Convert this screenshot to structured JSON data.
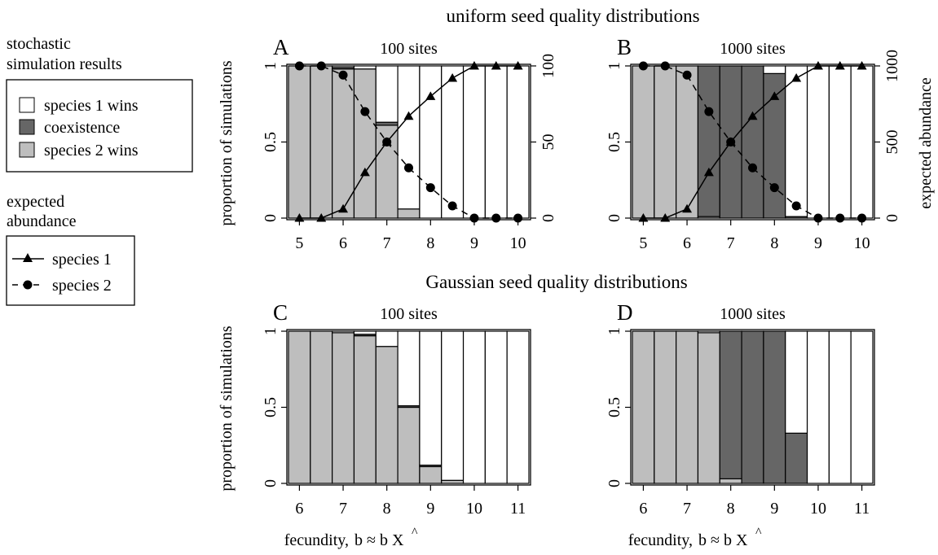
{
  "row_titles": {
    "top": "uniform seed quality distributions",
    "bottom": "Gaussian seed quality distributions"
  },
  "legend_outcomes": {
    "heading": [
      "stochastic",
      "simulation results"
    ],
    "items": [
      {
        "label": "species 1 wins",
        "color": "#ffffff"
      },
      {
        "label": "coexistence",
        "color": "#666666"
      },
      {
        "label": "species 2 wins",
        "color": "#bebebe"
      }
    ]
  },
  "legend_abundance": {
    "heading": [
      "expected",
      "abundance"
    ],
    "items": [
      {
        "label": "species 1",
        "marker": "triangle",
        "line": "solid"
      },
      {
        "label": "species 2",
        "marker": "circle",
        "line": "dashed"
      }
    ]
  },
  "axis_labels": {
    "y_left": "proportion of simulations",
    "y_right": "expected abundance",
    "x_prefix": "fecundity,",
    "x_formula": "b ≈ b X",
    "hat": "^"
  },
  "colors": {
    "species1_wins": "#ffffff",
    "coexistence": "#666666",
    "species2_wins": "#bebebe"
  },
  "chart_data": [
    {
      "type": "bar",
      "panel": "A",
      "title": "100 sites",
      "x": [
        5,
        5.5,
        6,
        6.5,
        7,
        7.5,
        8,
        8.5,
        9,
        9.5,
        10
      ],
      "xticks": [
        5,
        6,
        7,
        8,
        9,
        10
      ],
      "xlim": [
        4.75,
        10.25
      ],
      "ylim": [
        0,
        1
      ],
      "yticks": [
        "0",
        "0.5",
        "1"
      ],
      "stack_order": [
        "species 2 wins",
        "coexistence",
        "species 1 wins"
      ],
      "series": [
        {
          "name": "species 2 wins",
          "values": [
            1,
            1,
            0.98,
            0.98,
            0.61,
            0.06,
            0,
            0,
            0,
            0,
            0
          ]
        },
        {
          "name": "coexistence",
          "values": [
            0,
            0,
            0.01,
            0,
            0.02,
            0,
            0,
            0,
            0,
            0,
            0
          ]
        },
        {
          "name": "species 1 wins",
          "values": [
            0,
            0,
            0.01,
            0.02,
            0.37,
            0.94,
            1,
            1,
            1,
            1,
            1
          ]
        }
      ],
      "right_axis": {
        "ylim": [
          0,
          100
        ],
        "yticks": [
          "0",
          "50",
          "100"
        ],
        "series": [
          {
            "name": "species 1",
            "values": [
              0,
              0,
              6,
              30,
              50,
              67,
              80,
              92,
              100,
              100,
              100
            ]
          },
          {
            "name": "species 2",
            "values": [
              100,
              100,
              94,
              70,
              50,
              33,
              20,
              8,
              0,
              0,
              0
            ]
          }
        ]
      }
    },
    {
      "type": "bar",
      "panel": "B",
      "title": "1000 sites",
      "x": [
        5,
        5.5,
        6,
        6.5,
        7,
        7.5,
        8,
        8.5,
        9,
        9.5,
        10
      ],
      "xticks": [
        5,
        6,
        7,
        8,
        9,
        10
      ],
      "xlim": [
        4.75,
        10.25
      ],
      "ylim": [
        0,
        1
      ],
      "yticks": [
        "0",
        "0.5",
        "1"
      ],
      "stack_order": [
        "species 2 wins",
        "coexistence",
        "species 1 wins"
      ],
      "series": [
        {
          "name": "species 2 wins",
          "values": [
            1,
            1,
            1,
            0.01,
            0,
            0,
            0,
            0,
            0,
            0,
            0
          ]
        },
        {
          "name": "coexistence",
          "values": [
            0,
            0,
            0,
            0.99,
            1,
            1,
            0.95,
            0.01,
            0,
            0,
            0
          ]
        },
        {
          "name": "species 1 wins",
          "values": [
            0,
            0,
            0,
            0,
            0,
            0,
            0.05,
            0.99,
            1,
            1,
            1
          ]
        }
      ],
      "right_axis": {
        "ylim": [
          0,
          1000
        ],
        "yticks": [
          "0",
          "500",
          "1000"
        ],
        "series": [
          {
            "name": "species 1",
            "values": [
              0,
              0,
              60,
              300,
              500,
              670,
              800,
              920,
              1000,
              1000,
              1000
            ]
          },
          {
            "name": "species 2",
            "values": [
              1000,
              1000,
              940,
              700,
              500,
              330,
              200,
              80,
              0,
              0,
              0
            ]
          }
        ]
      }
    },
    {
      "type": "bar",
      "panel": "C",
      "title": "100 sites",
      "x": [
        6,
        6.5,
        7,
        7.5,
        8,
        8.5,
        9,
        9.5,
        10,
        10.5,
        11
      ],
      "xticks": [
        6,
        7,
        8,
        9,
        10,
        11
      ],
      "xlim": [
        5.75,
        11.25
      ],
      "ylim": [
        0,
        1
      ],
      "yticks": [
        "0",
        "0.5",
        "1"
      ],
      "stack_order": [
        "species 2 wins",
        "coexistence",
        "species 1 wins"
      ],
      "series": [
        {
          "name": "species 2 wins",
          "values": [
            1,
            1,
            0.99,
            0.97,
            0.9,
            0.5,
            0.11,
            0.02,
            0,
            0,
            0
          ]
        },
        {
          "name": "coexistence",
          "values": [
            0,
            0,
            0,
            0.01,
            0,
            0.01,
            0.01,
            0,
            0,
            0,
            0
          ]
        },
        {
          "name": "species 1 wins",
          "values": [
            0,
            0,
            0.01,
            0.02,
            0.1,
            0.49,
            0.88,
            0.98,
            1,
            1,
            1
          ]
        }
      ]
    },
    {
      "type": "bar",
      "panel": "D",
      "title": "1000 sites",
      "x": [
        6,
        6.5,
        7,
        7.5,
        8,
        8.5,
        9,
        9.5,
        10,
        10.5,
        11
      ],
      "xticks": [
        6,
        7,
        8,
        9,
        10,
        11
      ],
      "xlim": [
        5.75,
        11.25
      ],
      "ylim": [
        0,
        1
      ],
      "yticks": [
        "0",
        "0.5",
        "1"
      ],
      "stack_order": [
        "species 2 wins",
        "coexistence",
        "species 1 wins"
      ],
      "series": [
        {
          "name": "species 2 wins",
          "values": [
            1,
            1,
            1,
            0.99,
            0.03,
            0,
            0,
            0,
            0,
            0,
            0
          ]
        },
        {
          "name": "coexistence",
          "values": [
            0,
            0,
            0,
            0,
            0.97,
            1,
            1,
            0.33,
            0,
            0,
            0
          ]
        },
        {
          "name": "species 1 wins",
          "values": [
            0,
            0,
            0,
            0.01,
            0,
            0,
            0,
            0.67,
            1,
            1,
            1
          ]
        }
      ]
    }
  ]
}
